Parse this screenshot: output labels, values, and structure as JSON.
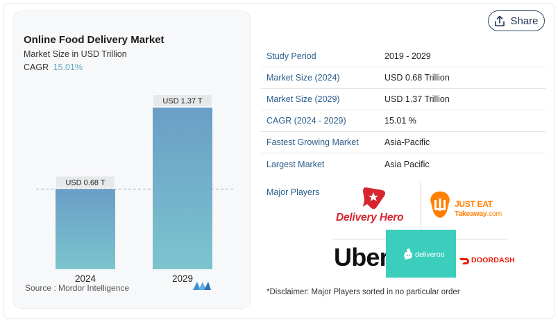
{
  "share": {
    "label": "Share"
  },
  "chart": {
    "title": "Online Food Delivery Market",
    "subtitle": "Market Size in USD Trillion",
    "cagr_label": "CAGR",
    "cagr_value": "15.01%",
    "source": "Source :  Mordor Intelligence",
    "bar_labels": [
      "USD 0.68 T",
      "USD 1.37 T"
    ],
    "colors": {
      "bar_top": "#6a9ec6",
      "bar_bottom": "#7cc4ce",
      "label_bg": "#e6e8ea",
      "dashed": "#8fb3d0",
      "logo": "#3d8fd6"
    }
  },
  "chart_data": {
    "type": "bar",
    "title": "Online Food Delivery Market",
    "ylabel": "Market Size in USD Trillion",
    "categories": [
      "2024",
      "2029"
    ],
    "values": [
      0.68,
      1.37
    ],
    "data_labels": [
      "USD 0.68 T",
      "USD 1.37 T"
    ],
    "ylim": [
      0,
      1.37
    ],
    "grid": false,
    "reference_line": 0.68
  },
  "info": {
    "rows": [
      {
        "label": "Study Period",
        "value": "2019 - 2029"
      },
      {
        "label": "Market Size (2024)",
        "value": "USD 0.68 Trillion"
      },
      {
        "label": "Market Size (2029)",
        "value": "USD 1.37 Trillion"
      },
      {
        "label": "CAGR (2024 - 2029)",
        "value": "15.01 %"
      },
      {
        "label": "Fastest Growing Market",
        "value": "Asia-Pacific"
      },
      {
        "label": "Largest Market",
        "value": "Asia Pacific"
      }
    ],
    "major_players_label": "Major Players",
    "disclaimer": "*Disclaimer: Major Players sorted in no particular order"
  },
  "players": {
    "delivery_hero": "Delivery Hero",
    "just_eat_line1": "JUST EAT",
    "just_eat_line2": "Takeaway",
    "just_eat_suffix": ".com",
    "uber": "Uber",
    "deliveroo": "deliveroo",
    "doordash": "DOORDASH",
    "colors": {
      "delivery_hero": "#d6252f",
      "just_eat": "#ff8000",
      "deliveroo": "#3ccebd",
      "doordash": "#eb1700"
    }
  }
}
